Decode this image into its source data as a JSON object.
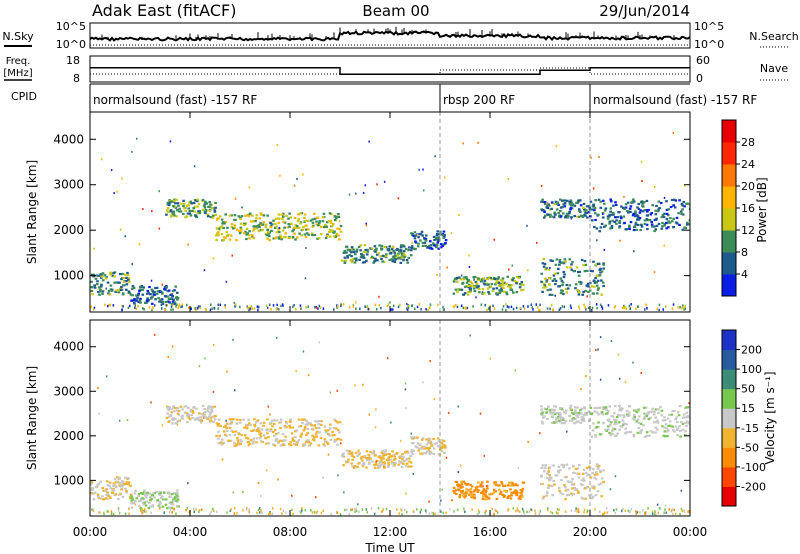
{
  "header": {
    "radar": "Adak East (fitACF)",
    "beam": "Beam 00",
    "date": "29/Jun/2014"
  },
  "noise_panel": {
    "left_label": "N.Sky",
    "left_ticks": [
      "10^5",
      "10^0"
    ],
    "right_label": "N.Search",
    "right_ticks": [
      "10^5",
      "10^0"
    ]
  },
  "freq_panel": {
    "left_label_1": "Freq.",
    "left_label_2": "[MHz]",
    "left_ticks": [
      "18",
      "8"
    ],
    "right_label": "Nave",
    "right_ticks": [
      "60",
      "0"
    ]
  },
  "cpid": {
    "label": "CPID",
    "segments": [
      {
        "start": 0,
        "end": 14,
        "text": "normalsound (fast) -157 RF"
      },
      {
        "start": 14,
        "end": 20,
        "text": "rbsp 200 RF"
      },
      {
        "start": 20,
        "end": 24,
        "text": "normalsound (fast) -157 RF"
      }
    ]
  },
  "power_panel": {
    "ylabel": "Slant Range [km]",
    "yticks": [
      "1000",
      "2000",
      "3000",
      "4000"
    ],
    "colorbar_label": "Power [dB]",
    "colorbar_ticks": [
      "4",
      "8",
      "12",
      "16",
      "20",
      "24",
      "28"
    ],
    "colorbar_colors": [
      "#0a1ee6",
      "#1e5a8c",
      "#3c8c5a",
      "#c8c814",
      "#ffb400",
      "#ff7800",
      "#ff2800",
      "#e60000"
    ]
  },
  "velocity_panel": {
    "ylabel": "Slant Range [km]",
    "yticks": [
      "1000",
      "2000",
      "3000",
      "4000"
    ],
    "colorbar_label": "Velocity [m s⁻¹]",
    "colorbar_ticks": [
      "-200",
      "-100",
      "-50",
      "-15",
      "15",
      "50",
      "100",
      "200"
    ],
    "colorbar_colors": [
      "#e60000",
      "#ff4600",
      "#ff8c00",
      "#f0b432",
      "#c8c8c8",
      "#78c850",
      "#3c8c78",
      "#285aa0",
      "#1e32c8"
    ]
  },
  "x_axis": {
    "ticks": [
      "00:00",
      "04:00",
      "08:00",
      "12:00",
      "16:00",
      "20:00",
      "00:00"
    ],
    "label": "Time UT"
  },
  "chart_data": {
    "type": "heatmap",
    "title": "Adak East (fitACF) Beam 00 29/Jun/2014",
    "xlabel": "Time UT",
    "ylabel": "Slant Range [km]",
    "xlim_hours": [
      0,
      24
    ],
    "ylim_km": [
      200,
      4600
    ],
    "freq_segments_mhz": [
      {
        "start": 0,
        "end": 10,
        "freq": 13.5
      },
      {
        "start": 10,
        "end": 14,
        "freq": 11.0
      },
      {
        "start": 14,
        "end": 18,
        "freq": 11.0
      },
      {
        "start": 18,
        "end": 20,
        "freq": 12.5
      },
      {
        "start": 20,
        "end": 24,
        "freq": 13.5
      }
    ],
    "scatter_regions": [
      {
        "name": "A",
        "t0": 0.0,
        "t1": 1.6,
        "r0": 600,
        "r1": 1100,
        "power_db": 8,
        "velocity": -10
      },
      {
        "name": "B",
        "t0": 1.6,
        "t1": 3.5,
        "r0": 400,
        "r1": 800,
        "power_db": 6,
        "velocity": 10
      },
      {
        "name": "C",
        "t0": 3.0,
        "t1": 5.0,
        "r0": 2300,
        "r1": 2700,
        "power_db": 10,
        "velocity": -5
      },
      {
        "name": "D",
        "t0": 5.0,
        "t1": 10.0,
        "r0": 1800,
        "r1": 2400,
        "power_db": 12,
        "velocity": -20
      },
      {
        "name": "E",
        "t0": 10.0,
        "t1": 12.8,
        "r0": 1300,
        "r1": 1700,
        "power_db": 8,
        "velocity": -20
      },
      {
        "name": "F",
        "t0": 12.8,
        "t1": 14.2,
        "r0": 1600,
        "r1": 2000,
        "power_db": 6,
        "velocity": -10
      },
      {
        "name": "G",
        "t0": 14.5,
        "t1": 17.3,
        "r0": 600,
        "r1": 1000,
        "power_db": 10,
        "velocity": -60
      },
      {
        "name": "H",
        "t0": 18.0,
        "t1": 20.0,
        "r0": 2300,
        "r1": 2700,
        "power_db": 7,
        "velocity": 5
      },
      {
        "name": "I",
        "t0": 20.0,
        "t1": 24.0,
        "r0": 2000,
        "r1": 2700,
        "power_db": 6,
        "velocity": 5
      },
      {
        "name": "J",
        "t0": 18.0,
        "t1": 20.5,
        "r0": 600,
        "r1": 1400,
        "power_db": 8,
        "velocity": -5
      }
    ]
  }
}
